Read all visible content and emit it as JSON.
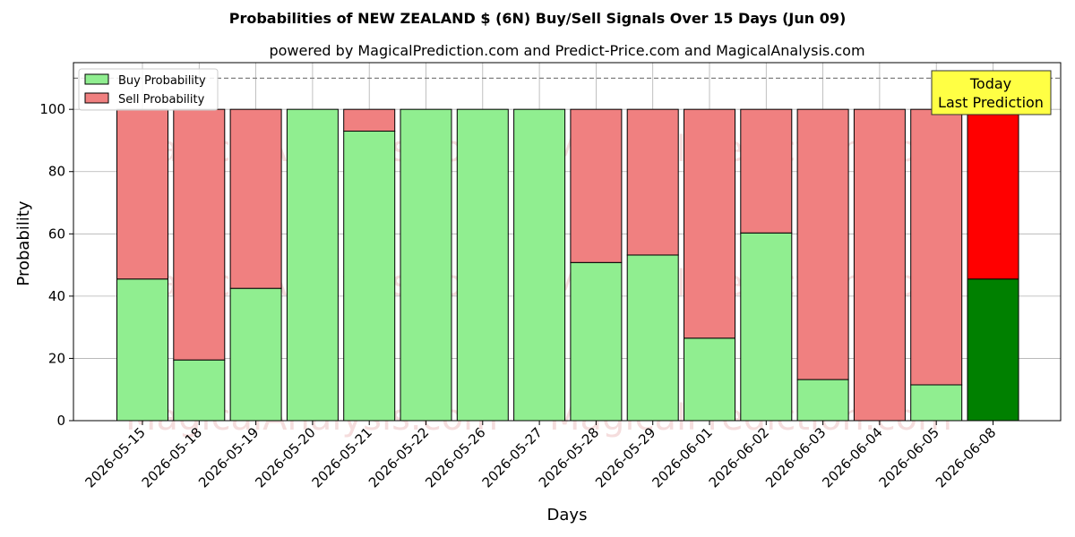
{
  "chart_data": {
    "type": "bar",
    "stacked": true,
    "title": "Probabilities of NEW ZEALAND $ (6N) Buy/Sell Signals Over 15 Days (Jun 09)",
    "subtitle": "powered by MagicalPrediction.com and Predict-Price.com and MagicalAnalysis.com",
    "xlabel": "Days",
    "ylabel": "Probability",
    "ylim": [
      0,
      115
    ],
    "yticks": [
      0,
      20,
      40,
      60,
      80,
      100
    ],
    "reference_line": 110,
    "grid": true,
    "legend_position": "top-left",
    "categories": [
      "2026-05-15",
      "2026-05-18",
      "2026-05-19",
      "2026-05-20",
      "2026-05-21",
      "2026-05-22",
      "2026-05-26",
      "2026-05-27",
      "2026-05-28",
      "2026-05-29",
      "2026-06-01",
      "2026-06-02",
      "2026-06-03",
      "2026-06-04",
      "2026-06-05",
      "2026-06-08"
    ],
    "series": [
      {
        "name": "Buy Probability",
        "color": "#90ee90",
        "highlight_color": "#008000",
        "values": [
          45.5,
          19.5,
          42.5,
          100,
          93,
          100,
          100,
          100,
          50.8,
          53.2,
          26.5,
          60.3,
          13.2,
          0,
          11.5,
          45.5
        ]
      },
      {
        "name": "Sell Probability",
        "color": "#f08080",
        "highlight_color": "#ff0000",
        "values": [
          54.5,
          80.5,
          57.5,
          0,
          7,
          0,
          0,
          0,
          49.2,
          46.8,
          73.5,
          39.7,
          86.8,
          100,
          88.5,
          54.5
        ]
      }
    ],
    "highlight_index": 15,
    "annotation": {
      "lines": [
        "Today",
        "Last Prediction"
      ],
      "bg": "#ffff44"
    },
    "watermarks": [
      "MagicalAnalysis.com",
      "MagicalPrediction.com"
    ]
  }
}
